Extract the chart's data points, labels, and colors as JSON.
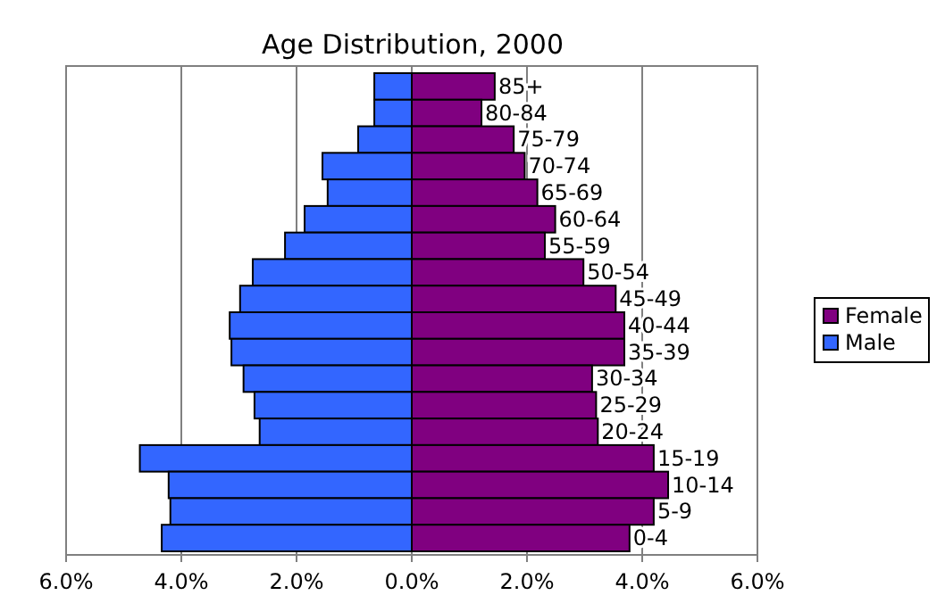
{
  "chart_data": {
    "type": "bar",
    "orientation": "horizontal",
    "stacked": true,
    "title": "Age Distribution, 2000",
    "categories": [
      "85+",
      "80-84",
      "75-79",
      "70-74",
      "65-69",
      "60-64",
      "55-59",
      "50-54",
      "45-49",
      "40-44",
      "35-39",
      "30-34",
      "25-29",
      "20-24",
      "15-19",
      "10-14",
      "5-9",
      "0-4"
    ],
    "series": [
      {
        "name": "Female",
        "color": "#800080",
        "values": [
          1.44,
          1.21,
          1.77,
          1.96,
          2.18,
          2.49,
          2.31,
          2.98,
          3.54,
          3.69,
          3.69,
          3.13,
          3.2,
          3.23,
          4.2,
          4.45,
          4.2,
          3.78
        ]
      },
      {
        "name": "Male",
        "color": "#3366ff",
        "values": [
          -0.65,
          -0.65,
          -0.93,
          -1.55,
          -1.46,
          -1.86,
          -2.2,
          -2.76,
          -2.98,
          -3.16,
          -3.13,
          -2.92,
          -2.73,
          -2.64,
          -4.72,
          -4.22,
          -4.19,
          -4.34
        ]
      }
    ],
    "xlim": [
      -6,
      6
    ],
    "xticks": [
      {
        "value": -6,
        "label": "6.0%"
      },
      {
        "value": -4,
        "label": "4.0%"
      },
      {
        "value": -2,
        "label": "2.0%"
      },
      {
        "value": 0,
        "label": "0.0%"
      },
      {
        "value": 2,
        "label": "2.0%"
      },
      {
        "value": 4,
        "label": "4.0%"
      },
      {
        "value": 6,
        "label": "6.0%"
      }
    ],
    "grid": "x",
    "legend": "right"
  }
}
